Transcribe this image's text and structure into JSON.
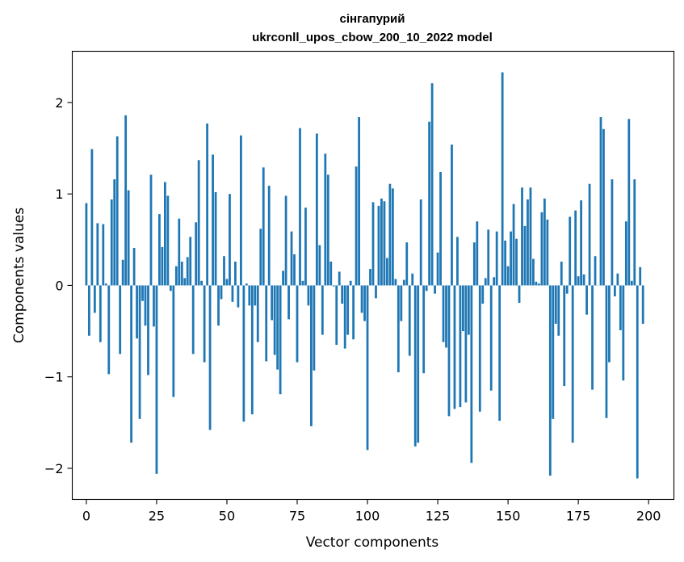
{
  "chart_data": {
    "type": "bar",
    "title_line1": "сінгапурий",
    "title_line2": "ukrconll_upos_cbow_200_10_2022 model",
    "xlabel": "Vector components",
    "ylabel": "Components values",
    "xlim": [
      -5,
      209
    ],
    "ylim": [
      -2.34,
      2.56
    ],
    "xticks": [
      0,
      25,
      50,
      75,
      100,
      125,
      150,
      175,
      200
    ],
    "yticks": [
      -2,
      -1,
      0,
      1,
      2
    ],
    "ytick_labels": [
      "−2",
      "−1",
      "0",
      "1",
      "2"
    ],
    "grid": false,
    "bar_color": "#1f77b4",
    "values": [
      0.9,
      -0.55,
      1.49,
      -0.3,
      0.68,
      -0.62,
      0.67,
      0.02,
      -0.97,
      0.94,
      1.16,
      1.63,
      -0.75,
      0.28,
      1.86,
      1.04,
      -1.72,
      0.41,
      -0.58,
      -1.46,
      -0.17,
      -0.44,
      -0.98,
      1.21,
      -0.45,
      -2.06,
      0.78,
      0.42,
      1.13,
      0.98,
      -0.06,
      -1.22,
      0.21,
      0.73,
      0.26,
      0.08,
      0.31,
      0.53,
      -0.75,
      0.69,
      1.37,
      0.05,
      -0.84,
      1.77,
      -1.58,
      1.43,
      1.02,
      -0.44,
      -0.15,
      0.32,
      0.07,
      1.0,
      -0.18,
      0.26,
      -0.24,
      1.64,
      -1.49,
      0.02,
      -0.22,
      -1.41,
      -0.22,
      -0.62,
      0.62,
      1.29,
      -0.83,
      1.09,
      -0.38,
      -0.76,
      -0.92,
      -1.19,
      0.16,
      0.98,
      -0.37,
      0.59,
      0.34,
      -0.84,
      1.72,
      0.05,
      0.85,
      -0.22,
      -1.54,
      -0.93,
      1.66,
      0.44,
      -0.54,
      1.44,
      1.21,
      0.26,
      -0.01,
      -0.65,
      0.15,
      -0.2,
      -0.69,
      -0.54,
      0.05,
      -0.59,
      1.3,
      1.84,
      -0.3,
      -0.39,
      -1.8,
      0.18,
      0.91,
      -0.14,
      0.87,
      0.95,
      0.92,
      0.3,
      1.11,
      1.06,
      0.07,
      -0.95,
      -0.39,
      0.06,
      0.47,
      -0.77,
      0.13,
      -1.76,
      -1.72,
      0.94,
      -0.96,
      -0.06,
      1.79,
      2.21,
      -0.09,
      0.36,
      1.24,
      -0.62,
      -0.68,
      -1.43,
      1.54,
      -1.35,
      0.53,
      -1.33,
      -0.5,
      -1.28,
      -0.54,
      -1.94,
      0.47,
      0.7,
      -1.38,
      -0.2,
      0.08,
      0.61,
      -1.15,
      0.09,
      0.59,
      -1.48,
      2.33,
      0.49,
      0.21,
      0.59,
      0.89,
      0.51,
      -0.19,
      1.07,
      0.65,
      0.94,
      1.07,
      0.29,
      0.04,
      0.02,
      0.8,
      0.95,
      0.72,
      -2.08,
      -1.46,
      -0.42,
      -0.55,
      0.26,
      -1.1,
      -0.09,
      0.75,
      -1.72,
      0.82,
      0.1,
      0.93,
      0.12,
      -0.32,
      1.11,
      -1.14,
      0.32,
      0.0,
      1.84,
      1.71,
      -1.45,
      -0.84,
      1.16,
      -0.12,
      0.13,
      -0.49,
      -1.04,
      0.7,
      1.82,
      0.05,
      1.16,
      -2.11,
      0.2,
      -0.42
    ]
  }
}
